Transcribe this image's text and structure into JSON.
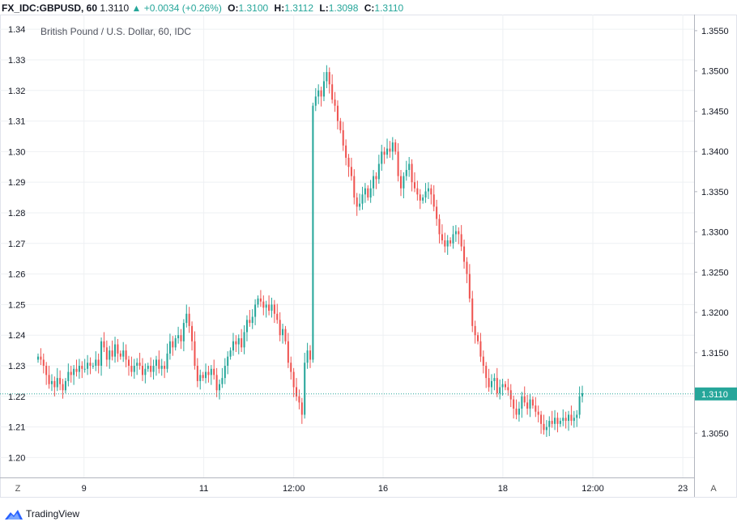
{
  "header": {
    "symbol": "FX_IDC:GBPUSD, 60",
    "last": "1.3110",
    "change": "▲ +0.0034 (+0.26%)",
    "open_label": "O:",
    "open": "1.3100",
    "high_label": "H:",
    "high": "1.3112",
    "low_label": "L:",
    "low": "1.3098",
    "close_label": "C:",
    "close": "1.3110"
  },
  "controls": {
    "zoom_label": "Z",
    "auto_label": "A"
  },
  "brand": {
    "name": "TradingView"
  },
  "colors": {
    "up": "#26a69a",
    "down": "#ef5350",
    "grid": "#eef0f3",
    "axis": "#b2b5be",
    "text": "#131722"
  },
  "chart_data": {
    "type": "candlestick",
    "title": "British Pound / U.S. Dollar, 60, IDC",
    "left_axis": {
      "ticks": [
        "1.34",
        "1.33",
        "1.32",
        "1.31",
        "1.30",
        "1.29",
        "1.28",
        "1.27",
        "1.26",
        "1.25",
        "1.24",
        "1.23",
        "1.22",
        "1.21",
        "1.20"
      ],
      "range": [
        1.1935,
        1.3448
      ]
    },
    "right_axis": {
      "ticks": [
        "1.3550",
        "1.3500",
        "1.3450",
        "1.3400",
        "1.3350",
        "1.3300",
        "1.3250",
        "1.3200",
        "1.3150",
        "1.3100",
        "1.3050"
      ],
      "range": [
        1.2995,
        1.357
      ]
    },
    "x_ticks": [
      {
        "label": "9",
        "t": 0.078
      },
      {
        "label": "11",
        "t": 0.259
      },
      {
        "label": "12:00",
        "t": 0.395
      },
      {
        "label": "16",
        "t": 0.53
      },
      {
        "label": "18",
        "t": 0.711
      },
      {
        "label": "12:00",
        "t": 0.847
      },
      {
        "label": "23",
        "t": 0.983
      }
    ],
    "last_price_label": "1.3110",
    "last_price_left": 1.2208,
    "series_close": [
      1.233,
      1.232,
      1.23,
      1.227,
      1.224,
      1.225,
      1.223,
      1.226,
      1.224,
      1.222,
      1.225,
      1.228,
      1.227,
      1.229,
      1.228,
      1.23,
      1.229,
      1.229,
      1.231,
      1.23,
      1.23,
      1.232,
      1.23,
      1.238,
      1.236,
      1.232,
      1.235,
      1.233,
      1.237,
      1.234,
      1.233,
      1.235,
      1.232,
      1.23,
      1.228,
      1.23,
      1.231,
      1.23,
      1.227,
      1.229,
      1.23,
      1.228,
      1.23,
      1.232,
      1.229,
      1.23,
      1.229,
      1.234,
      1.238,
      1.236,
      1.239,
      1.24,
      1.238,
      1.244,
      1.247,
      1.243,
      1.238,
      1.23,
      1.225,
      1.227,
      1.226,
      1.228,
      1.227,
      1.229,
      1.227,
      1.222,
      1.224,
      1.226,
      1.23,
      1.233,
      1.235,
      1.238,
      1.237,
      1.239,
      1.236,
      1.241,
      1.245,
      1.244,
      1.246,
      1.25,
      1.252,
      1.251,
      1.249,
      1.25,
      1.248,
      1.25,
      1.247,
      1.245,
      1.24,
      1.242,
      1.238,
      1.231,
      1.228,
      1.223,
      1.22,
      1.218,
      1.214,
      1.231,
      1.235,
      1.232,
      1.315,
      1.318,
      1.32,
      1.318,
      1.323,
      1.326,
      1.322,
      1.317,
      1.315,
      1.31,
      1.307,
      1.302,
      1.298,
      1.295,
      1.292,
      1.285,
      1.282,
      1.283,
      1.286,
      1.288,
      1.285,
      1.288,
      1.292,
      1.291,
      1.296,
      1.3,
      1.299,
      1.301,
      1.3,
      1.303,
      1.3,
      1.292,
      1.288,
      1.292,
      1.294,
      1.296,
      1.29,
      1.288,
      1.286,
      1.284,
      1.285,
      1.287,
      1.288,
      1.286,
      1.282,
      1.278,
      1.273,
      1.271,
      1.269,
      1.271,
      1.27,
      1.273,
      1.274,
      1.273,
      1.269,
      1.264,
      1.26,
      1.252,
      1.243,
      1.24,
      1.238,
      1.233,
      1.23,
      1.226,
      1.223,
      1.225,
      1.226,
      1.221,
      1.223,
      1.224,
      1.223,
      1.222,
      1.219,
      1.216,
      1.214,
      1.216,
      1.22,
      1.218,
      1.216,
      1.219,
      1.217,
      1.215,
      1.214,
      1.211,
      1.209,
      1.21,
      1.212,
      1.211,
      1.213,
      1.211,
      1.212,
      1.213,
      1.212,
      1.214,
      1.212,
      1.213,
      1.214,
      1.22,
      1.221
    ],
    "series_high_wick": 0.0025,
    "series_low_wick": 0.0025
  }
}
